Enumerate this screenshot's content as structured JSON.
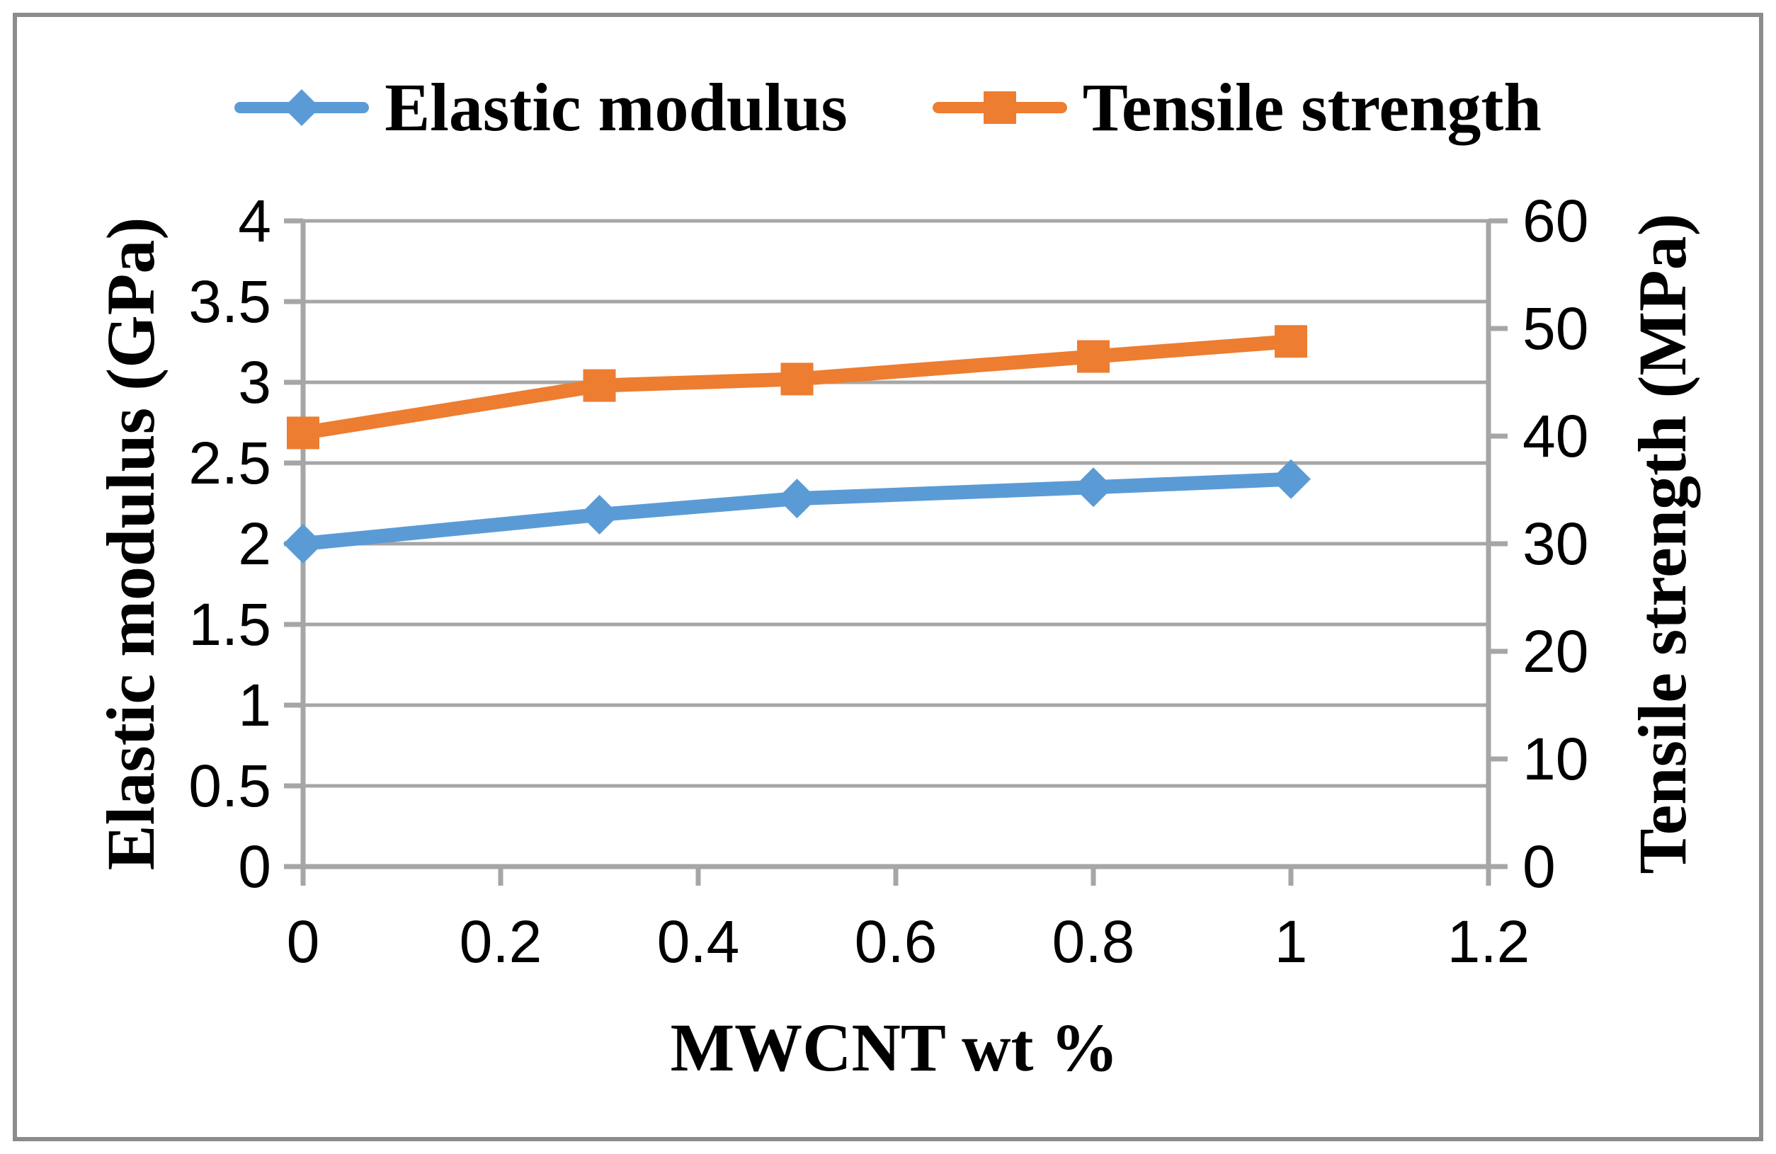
{
  "chart_data": {
    "type": "line",
    "title": "",
    "x": [
      0,
      0.3,
      0.5,
      0.8,
      1
    ],
    "series": [
      {
        "name": "Elastic modulus",
        "axis": "left",
        "unit": "GPa",
        "color": "#5B9BD5",
        "marker": "diamond",
        "values": [
          2.0,
          2.18,
          2.28,
          2.35,
          2.4
        ]
      },
      {
        "name": "Tensile strength",
        "axis": "right",
        "unit": "MPa",
        "color": "#ED7D31",
        "marker": "square",
        "values": [
          40.3,
          44.7,
          45.3,
          47.4,
          48.8
        ]
      }
    ],
    "xlabel": "MWCNT wt %",
    "ylabel_left": "Elastic modulus (GPa)",
    "ylabel_right": "Tensile strength (MPa)",
    "xlim": [
      0,
      1.2
    ],
    "ylim_left": [
      0,
      4
    ],
    "ylim_right": [
      0,
      60
    ],
    "xticks": [
      0,
      0.2,
      0.4,
      0.6,
      0.8,
      1,
      1.2
    ],
    "xtick_labels": [
      "0",
      "0.2",
      "0.4",
      "0.6",
      "0.8",
      "1",
      "1.2"
    ],
    "yticks_left": [
      0,
      0.5,
      1,
      1.5,
      2,
      2.5,
      3,
      3.5,
      4
    ],
    "ytick_labels_left": [
      "0",
      "0.5",
      "1",
      "1.5",
      "2",
      "2.5",
      "3",
      "3.5",
      "4"
    ],
    "yticks_right": [
      0,
      10,
      20,
      30,
      40,
      50,
      60
    ],
    "ytick_labels_right": [
      "0",
      "10",
      "20",
      "30",
      "40",
      "50",
      "60"
    ],
    "grid": "horizontal-only",
    "legend_position": "top-center"
  },
  "styles": {
    "grid_color": "#A6A6A6",
    "axis_color": "#A6A6A6",
    "border_color": "#8C8C8C",
    "text_color": "#000000",
    "background": "#FFFFFF"
  }
}
